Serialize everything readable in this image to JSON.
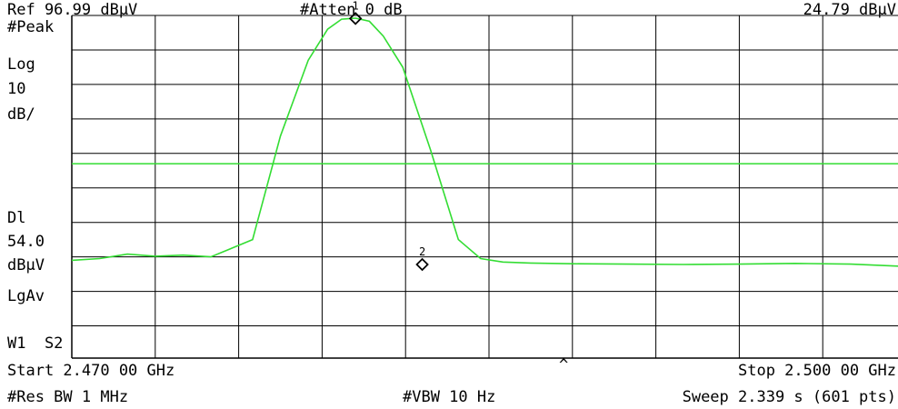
{
  "header": {
    "ref_level": "Ref 96.99 dBμV",
    "attenuation": "#Atten 0 dB",
    "marker_readout": "24.79 dBμV"
  },
  "left_panel": {
    "detector": "#Peak",
    "scale_type": "Log",
    "scale_value": "10",
    "scale_unit": "dB/",
    "display_line_label": "Dl",
    "display_line_value": "54.0",
    "display_line_unit": "dBμV",
    "averaging": "LgAv",
    "trace_status": "W1  S2"
  },
  "footer": {
    "start_freq": "Start 2.470 00 GHz",
    "stop_freq": "Stop 2.500 00 GHz",
    "res_bw": "#Res BW 1 MHz",
    "vbw": "#VBW 10 Hz",
    "sweep": "Sweep 2.339 s (601 pts)",
    "caret": "^"
  },
  "markers": [
    {
      "label": "1",
      "freq_ghz": 2.4802,
      "level_dbuv": 96.1
    },
    {
      "label": "2",
      "freq_ghz": 2.4826,
      "level_dbuv": 24.79
    }
  ],
  "chart_data": {
    "type": "line",
    "x_unit": "GHz",
    "y_unit": "dBμV",
    "xlim": [
      2.47,
      2.5
    ],
    "ylim": [
      -3.01,
      96.99
    ],
    "y_divisions": 10,
    "x_divisions": 10,
    "display_line_dbuv": 54.0,
    "grid": true,
    "trace_color": "#33dd33",
    "x": [
      2.47,
      2.471,
      2.472,
      2.473,
      2.474,
      2.475,
      2.4765,
      2.4775,
      2.4785,
      2.4792,
      2.4797,
      2.4802,
      2.4807,
      2.4812,
      2.4819,
      2.4829,
      2.4839,
      2.4847,
      2.4855,
      2.4865,
      2.488,
      2.49,
      2.492,
      2.494,
      2.496,
      2.498,
      2.5
    ],
    "y": [
      26.0,
      26.5,
      27.8,
      27.2,
      27.5,
      27.0,
      32.0,
      62.0,
      84.0,
      93.0,
      95.9,
      96.2,
      95.3,
      91.0,
      82.0,
      58.0,
      32.0,
      26.5,
      25.5,
      25.2,
      25.0,
      24.9,
      24.8,
      24.9,
      25.1,
      24.9,
      24.2
    ]
  }
}
